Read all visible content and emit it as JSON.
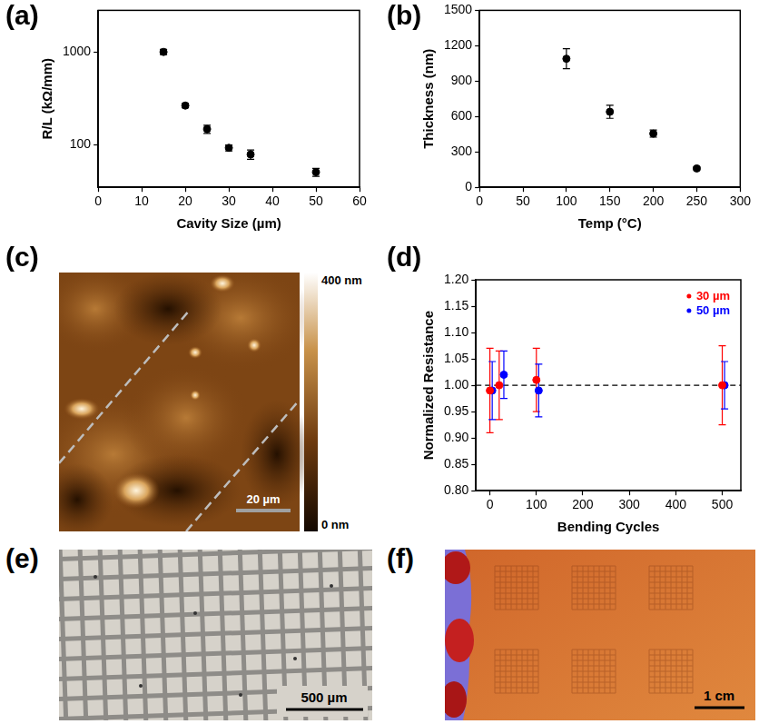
{
  "chart_data": [
    {
      "panel": "(a)",
      "type": "scatter",
      "x_label": "Cavity Size (µm)",
      "y_label": "R/L (kΩ/mm)",
      "log": "y",
      "grid": false,
      "series": [
        {
          "color": "#000000",
          "marker": "circle",
          "x": [
            15,
            20,
            25,
            30,
            35,
            50
          ],
          "values": [
            1000,
            265,
            148,
            93,
            79,
            51
          ],
          "errors": [
            65,
            14,
            15,
            7,
            9,
            5
          ]
        }
      ],
      "xlim": [
        0,
        60
      ],
      "xticks": [
        0,
        10,
        20,
        30,
        40,
        50,
        60
      ],
      "ylim": [
        35,
        2800
      ],
      "yticks": [
        100,
        1000
      ]
    },
    {
      "panel": "(b)",
      "type": "scatter",
      "x_label": "Temp (°C)",
      "y_label": "Thickness (nm)",
      "grid": false,
      "series": [
        {
          "color": "#000000",
          "marker": "circle",
          "x": [
            100,
            150,
            200,
            250
          ],
          "values": [
            1090,
            640,
            455,
            160
          ],
          "errors": [
            85,
            55,
            30,
            12
          ]
        }
      ],
      "xlim": [
        0,
        300
      ],
      "xticks": [
        0,
        50,
        100,
        150,
        200,
        250,
        300
      ],
      "ylim": [
        0,
        1500
      ],
      "yticks": [
        0,
        300,
        600,
        900,
        1200,
        1500
      ]
    },
    {
      "panel": "(d)",
      "type": "scatter",
      "x_label": "Bending Cycles",
      "y_label": "Normalized Resistance",
      "grid": false,
      "legend": "upper right",
      "series": [
        {
          "name": "30 µm",
          "color": "#ff0000",
          "marker": "circle",
          "x": [
            0,
            20,
            100,
            500
          ],
          "values": [
            0.99,
            1.0,
            1.01,
            1.0
          ],
          "errors": [
            0.08,
            0.065,
            0.06,
            0.075
          ]
        },
        {
          "name": "50 µm",
          "color": "#0000ff",
          "marker": "circle",
          "x": [
            5,
            30,
            105,
            505
          ],
          "values": [
            0.99,
            1.02,
            0.99,
            1.0
          ],
          "errors": [
            0.055,
            0.045,
            0.05,
            0.045
          ]
        }
      ],
      "reference_line": {
        "y": 1.0,
        "line_style": "dashed"
      },
      "xlim": [
        -30,
        540
      ],
      "xticks": [
        0,
        100,
        200,
        300,
        400,
        500
      ],
      "ylim": [
        0.8,
        1.2
      ],
      "yticks": [
        {
          "value": 0.8,
          "label": "0.80"
        },
        0.85,
        {
          "value": 0.9,
          "label": "0.90"
        },
        0.95,
        {
          "value": 1.0,
          "label": "1.00"
        },
        1.05,
        {
          "value": 1.1,
          "label": "1.10"
        },
        1.15,
        {
          "value": 1.2,
          "label": "1.20"
        }
      ]
    }
  ],
  "image_panels": [
    {
      "panel": "(c)",
      "scale_bar": "20 µm",
      "colorbar": {
        "range": [
          0,
          400
        ],
        "ticks": [
          {
            "value": 400,
            "label": "400 nm"
          },
          {
            "value": 0,
            "label": "0 nm"
          }
        ]
      }
    },
    {
      "panel": "(e)",
      "scale_bar": "500 µm"
    },
    {
      "panel": "(f)",
      "scale_bar": "1 cm"
    }
  ]
}
